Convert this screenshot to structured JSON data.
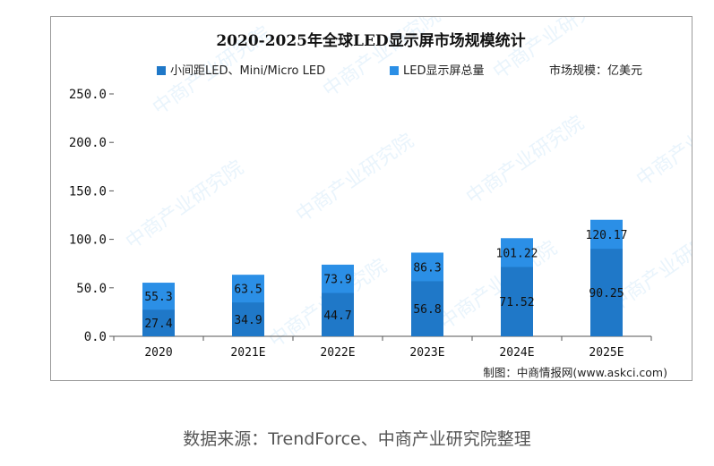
{
  "chart_data": {
    "type": "bar",
    "stacked": true,
    "title": "2020-2025年全球LED显示屏市场规模统计",
    "unit_label": "市场规模：亿美元",
    "categories": [
      "2020",
      "2021E",
      "2022E",
      "2023E",
      "2024E",
      "2025E"
    ],
    "series": [
      {
        "name": "小间距LED、Mini/Micro LED",
        "color": "#1f78c8",
        "values": [
          27.4,
          34.9,
          44.7,
          56.8,
          71.52,
          90.25
        ],
        "labels": [
          "27.4",
          "34.9",
          "44.7",
          "56.8",
          "71.52",
          "90.25"
        ]
      },
      {
        "name": "LED显示屏总量",
        "color": "#2b8fe6",
        "values": [
          55.3,
          63.5,
          73.9,
          86.3,
          101.22,
          120.17
        ],
        "labels": [
          "55.3",
          "63.5",
          "73.9",
          "86.3",
          "101.22",
          "120.17"
        ]
      }
    ],
    "ylim": [
      0,
      250
    ],
    "yticks": [
      "0.0",
      "50.0",
      "100.0",
      "150.0",
      "200.0",
      "250.0"
    ],
    "ytick_values": [
      0,
      50,
      100,
      150,
      200,
      250
    ],
    "xlabel": "",
    "ylabel": ""
  },
  "credit": "制图：中商情报网(www.askci.com)",
  "watermark": "中商产业研究院",
  "source": "数据来源：TrendForce、中商产业研究院整理"
}
